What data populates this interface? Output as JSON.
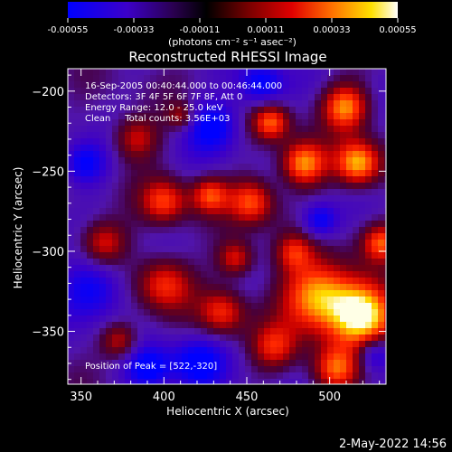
{
  "colorbar": {
    "tick_labels": [
      "-0.00055",
      "-0.00033",
      "-0.00011",
      "0.00011",
      "0.00033",
      "0.00055"
    ],
    "tick_values": [
      -0.00055,
      -0.00033,
      -0.00011,
      0.00011,
      0.00033,
      0.00055
    ],
    "range": [
      -0.00055,
      0.00055
    ],
    "units_label": "(photons cm⁻² s⁻¹ asec⁻²)"
  },
  "chart_data": {
    "type": "heatmap",
    "title": "Reconstructed RHESSI Image",
    "xlabel": "Heliocentric X (arcsec)",
    "ylabel": "Heliocentric Y (arcsec)",
    "xlim": [
      342,
      534
    ],
    "ylim": [
      -383,
      -186
    ],
    "xticks": [
      350,
      400,
      450,
      500
    ],
    "xtick_labels": [
      "350",
      "400",
      "450",
      "500"
    ],
    "yticks": [
      -200,
      -250,
      -300,
      -350
    ],
    "ytick_labels": [
      "−200",
      "−250",
      "−300",
      "−350"
    ],
    "colormap": [
      "#0000ff",
      "#3c00c8",
      "#5a00a0",
      "#000000",
      "#6a0000",
      "#c00000",
      "#ff2000",
      "#ff8000",
      "#ffd000",
      "#ffffff"
    ],
    "info_lines": [
      "16-Sep-2005 00:40:44.000 to 00:46:44.000",
      "Detectors: 3F 4F 5F 6F 7F 8F, Att 0",
      "Energy Range: 12.0 - 25.0 keV",
      "Clean     Total counts: 3.56E+03"
    ],
    "peak_label": "Position of Peak = [522,-320]",
    "peak": [
      522,
      -320
    ]
  },
  "footer": {
    "timestamp": "2-May-2022 14:56"
  }
}
